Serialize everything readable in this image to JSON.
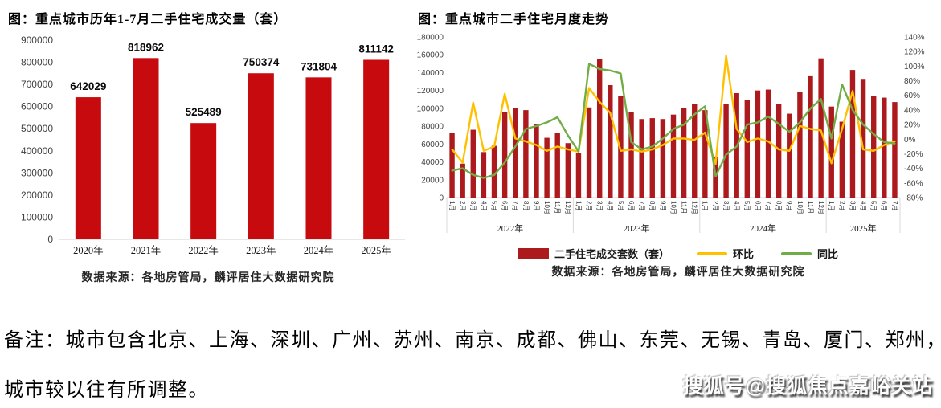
{
  "page": {
    "note_line1": "备注：城市包含北京、上海、深圳、广州、苏州、南京、成都、佛山、东莞、无锡、青岛、厦门、郑州，",
    "note_line2": "城市较以往有所调整。",
    "watermark": "搜狐号@搜狐焦点嘉峪关站"
  },
  "colors": {
    "left_bar_red": "#C60A0D",
    "right_bar_red": "#AD1A1D",
    "line_yellow": "#FFC000",
    "line_green": "#70AD47",
    "axis_gray": "#D9D9D9",
    "tick_text": "#404040"
  },
  "chart_data": [
    {
      "type": "bar",
      "title": "图：重点城市历年1-7月二手住宅成交量（套）",
      "categories": [
        "2020年",
        "2021年",
        "2022年",
        "2023年",
        "2024年",
        "2025年"
      ],
      "values": [
        642029,
        818962,
        525489,
        750374,
        731804,
        811142
      ],
      "data_labels": [
        "642029",
        "818962",
        "525489",
        "750374",
        "731804",
        "811142"
      ],
      "ylim": [
        0,
        900000
      ],
      "ytick_step": 100000,
      "grid": false,
      "source": "数据来源：各地房管局，麟评居住大数据研究院"
    },
    {
      "type": "combo",
      "title": "图：重点城市二手住宅月度走势",
      "left_axis": {
        "min": 0,
        "max": 180000,
        "step": 20000
      },
      "right_axis": {
        "min": -80,
        "max": 140,
        "step": 20,
        "format": "percent"
      },
      "month_labels": [
        "1月",
        "2月",
        "3月",
        "4月",
        "5月",
        "6月",
        "7月",
        "8月",
        "9月",
        "10月",
        "11月",
        "12月"
      ],
      "year_groups": [
        {
          "year": "2022年",
          "months": 12
        },
        {
          "year": "2023年",
          "months": 12
        },
        {
          "year": "2024年",
          "months": 12
        },
        {
          "year": "2025年",
          "months": 7
        }
      ],
      "series": [
        {
          "name": "二手住宅成交套数（套）",
          "type": "bar",
          "axis": "left",
          "values": [
            72000,
            38000,
            76000,
            51000,
            58000,
            96000,
            100000,
            98000,
            82000,
            67000,
            72000,
            61000,
            50000,
            101000,
            155000,
            126000,
            114000,
            96000,
            88000,
            89000,
            88000,
            93000,
            100000,
            105000,
            98000,
            46000,
            105000,
            117000,
            109000,
            120000,
            121000,
            105000,
            94000,
            118000,
            136000,
            156000,
            102000,
            85000,
            143000,
            133000,
            114000,
            112000,
            107000
          ]
        },
        {
          "name": "环比",
          "type": "line",
          "axis": "right",
          "values": [
            -14,
            -32,
            50,
            -16,
            -10,
            62,
            1,
            -3,
            -8,
            -16,
            -10,
            -14,
            -17,
            70,
            51,
            36,
            -16,
            -14,
            -17,
            -14,
            -8,
            1,
            1,
            -1,
            9,
            -34,
            114,
            14,
            -4,
            1,
            -3,
            -14,
            -16,
            18,
            14,
            12,
            -33,
            14,
            66,
            -14,
            -16,
            -8,
            -3
          ]
        },
        {
          "name": "同比",
          "type": "line",
          "axis": "right",
          "values": [
            -43,
            -40,
            -49,
            -53,
            -49,
            -32,
            -10,
            14,
            18,
            23,
            30,
            5,
            -17,
            103,
            96,
            94,
            90,
            -4,
            -14,
            -10,
            1,
            14,
            20,
            34,
            45,
            -51,
            -21,
            -10,
            20,
            23,
            31,
            21,
            10,
            23,
            42,
            55,
            1,
            75,
            40,
            20,
            7,
            -4,
            -6
          ]
        }
      ],
      "legend_position": "bottom",
      "source": "数据来源：各地房管局，麟评居住大数据研究院"
    }
  ]
}
